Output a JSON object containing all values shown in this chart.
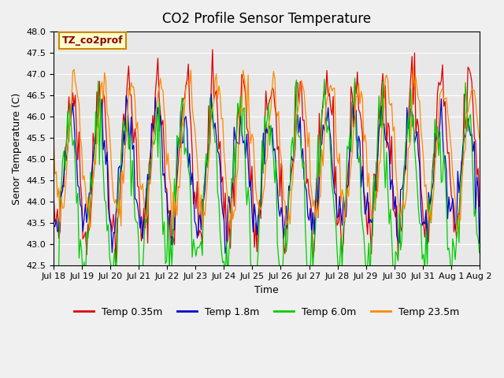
{
  "title": "CO2 Profile Sensor Temperature",
  "xlabel": "Time",
  "ylabel": "Senor Temperature (C)",
  "ylim": [
    42.5,
    48.0
  ],
  "annotation": "TZ_co2prof",
  "fig_facecolor": "#f0f0f0",
  "ax_facecolor": "#e8e8e8",
  "series": [
    {
      "label": "Temp 0.35m",
      "color": "#dd0000"
    },
    {
      "label": "Temp 1.8m",
      "color": "#0000cc"
    },
    {
      "label": "Temp 6.0m",
      "color": "#00cc00"
    },
    {
      "label": "Temp 23.5m",
      "color": "#ff8800"
    }
  ],
  "xtick_labels": [
    "Jul 18",
    "Jul 19",
    "Jul 20",
    "Jul 21",
    "Jul 22",
    "Jul 23",
    "Jul 24",
    "Jul 25",
    "Jul 26",
    "Jul 27",
    "Jul 28",
    "Jul 29",
    "Jul 30",
    "Jul 31",
    "Aug 1",
    "Aug 2"
  ],
  "ytick_values": [
    42.5,
    43.0,
    43.5,
    44.0,
    44.5,
    45.0,
    45.5,
    46.0,
    46.5,
    47.0,
    47.5,
    48.0
  ],
  "seed": 42,
  "n_points": 336,
  "base_temp": 45.0,
  "amplitude": 1.8,
  "noise_scale": 0.4
}
